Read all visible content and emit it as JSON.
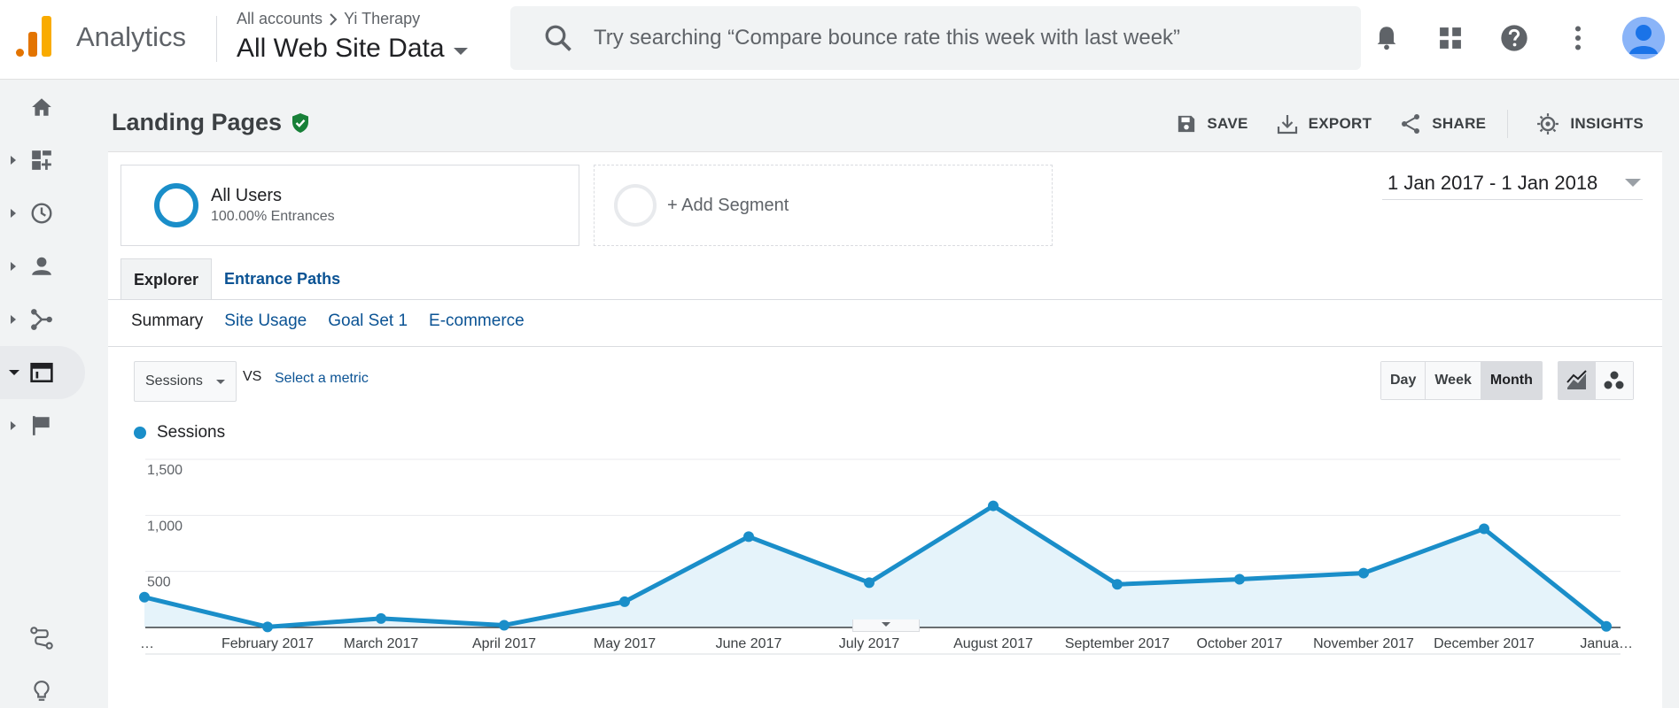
{
  "header": {
    "app_name": "Analytics",
    "breadcrumb_account": "All accounts",
    "breadcrumb_property": "Yi Therapy",
    "view_name": "All Web Site Data",
    "search_placeholder": "Try searching “Compare bounce rate this week with last week”"
  },
  "page": {
    "title": "Landing Pages",
    "actions": {
      "save": "SAVE",
      "export": "EXPORT",
      "share": "SHARE",
      "insights": "INSIGHTS"
    }
  },
  "segments": {
    "primary_name": "All Users",
    "primary_sub": "100.00% Entrances",
    "add_label": "+ Add Segment"
  },
  "date_range": "1 Jan 2017 - 1 Jan 2018",
  "tabs": {
    "explorer": "Explorer",
    "entrance_paths": "Entrance Paths"
  },
  "subtabs": {
    "summary": "Summary",
    "site_usage": "Site Usage",
    "goal_set": "Goal Set 1",
    "ecommerce": "E-commerce"
  },
  "controls": {
    "metric": "Sessions",
    "vs": "VS",
    "select_metric": "Select a metric",
    "periods": {
      "day": "Day",
      "week": "Week",
      "month": "Month"
    }
  },
  "colors": {
    "series": "#1a8ec9",
    "fill": "#e5f3fa",
    "accent_orange": "#e37400",
    "accent_yellow": "#f9ab00",
    "verified_green": "#188038"
  },
  "chart_data": {
    "type": "line",
    "legend": "Sessions",
    "y_ticks": [
      "1,500",
      "1,000",
      "500"
    ],
    "ylim": [
      0,
      1500
    ],
    "grid": true,
    "categories": [
      "…",
      "February 2017",
      "March 2017",
      "April 2017",
      "May 2017",
      "June 2017",
      "July 2017",
      "August 2017",
      "September 2017",
      "October 2017",
      "November 2017",
      "December 2017",
      "Janua…"
    ],
    "values": [
      270,
      5,
      80,
      20,
      230,
      810,
      400,
      1085,
      385,
      430,
      485,
      880,
      10
    ]
  }
}
